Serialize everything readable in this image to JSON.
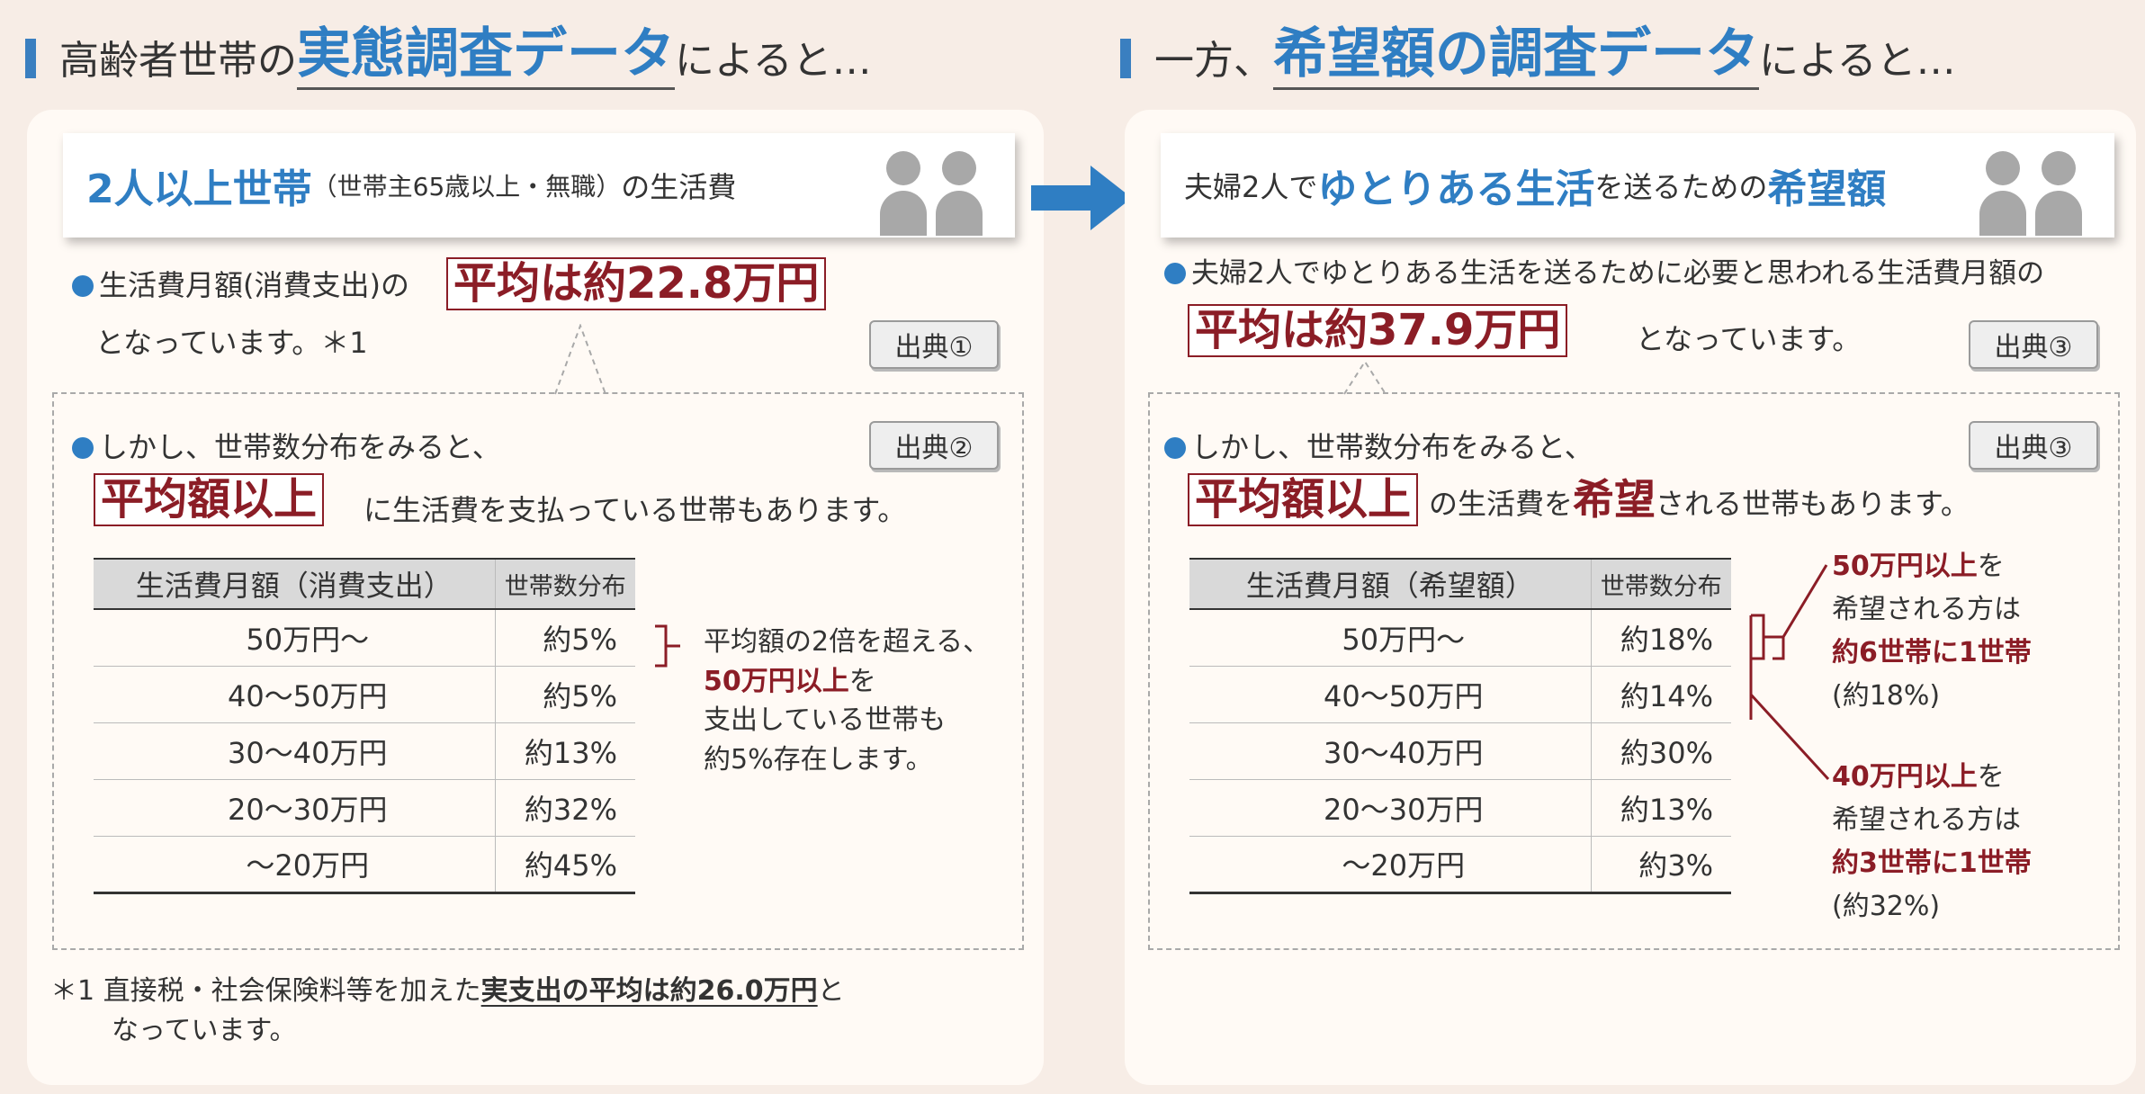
{
  "left": {
    "header": {
      "prefix": "高齢者世帯の",
      "highlight": "実態調査データ",
      "suffix": "によると…"
    },
    "title_box": {
      "main": "2人以上世帯",
      "paren": "（世帯主65歳以上・無職）",
      "tail": "の生活費"
    },
    "point1": {
      "line1_pre": "生活費月額(消費支出)の",
      "avg": "平均は約22.8万円",
      "line2": "となっています。＊1",
      "source": "出典①"
    },
    "point2": {
      "line1": "しかし、世帯数分布をみると、",
      "emph": "平均額以上",
      "line2_tail": "に生活費を支払っている世帯もあります。",
      "source": "出典②"
    },
    "table": {
      "headers": [
        "生活費月額（消費支出）",
        "世帯数分布"
      ],
      "rows": [
        {
          "range": "50万円～",
          "share": "約5%"
        },
        {
          "range": "40～50万円",
          "share": "約5%"
        },
        {
          "range": "30～40万円",
          "share": "約13%"
        },
        {
          "range": "20～30万円",
          "share": "約32%"
        },
        {
          "range": "～20万円",
          "share": "約45%"
        }
      ]
    },
    "callout": {
      "l1": "平均額の2倍を超える、",
      "l2": "50万円以上",
      "l2b": "を",
      "l3": "支出している世帯も",
      "l4": "約5%存在します。"
    },
    "footnote": {
      "mark": "＊1",
      "pre": "直接税・社会保険料等を加えた",
      "bold": "実支出の平均は約26.0万円",
      "post": "と",
      "line2": "なっています。"
    }
  },
  "right": {
    "header": {
      "prefix": "一方、",
      "highlight": "希望額の調査データ",
      "suffix": "によると…"
    },
    "title_box": {
      "pre": "夫婦2人で",
      "emph": "ゆとりある生活",
      "mid": "を送るための",
      "emph2": "希望額"
    },
    "point1": {
      "line1": "夫婦2人でゆとりある生活を送るために必要と思われる生活費月額の",
      "avg": "平均は約37.9万円",
      "line2_tail": "となっています。",
      "source": "出典③"
    },
    "point2": {
      "line1": "しかし、世帯数分布をみると、",
      "emph": "平均額以上",
      "mid": "の生活費を",
      "emph2": "希望",
      "tail": "される世帯もあります。",
      "source": "出典③"
    },
    "table": {
      "headers": [
        "生活費月額（希望額）",
        "世帯数分布"
      ],
      "rows": [
        {
          "range": "50万円～",
          "share": "約18%"
        },
        {
          "range": "40～50万円",
          "share": "約14%"
        },
        {
          "range": "30～40万円",
          "share": "約30%"
        },
        {
          "range": "20～30万円",
          "share": "約13%"
        },
        {
          "range": "～20万円",
          "share": "約3%"
        }
      ]
    },
    "callout1": {
      "l1": "50万円以上",
      "l1b": "を",
      "l2": "希望される方は",
      "l3": "約6世帯に1世帯",
      "l4": "(約18%)"
    },
    "callout2": {
      "l1": "40万円以上",
      "l1b": "を",
      "l2": "希望される方は",
      "l3": "約3世帯に1世帯",
      "l4": "(約32%)"
    }
  },
  "colors": {
    "accent_blue": "#2f7ec3",
    "accent_red": "#8b1d26",
    "background": "#f7ede6"
  },
  "icons": [
    "people-icon",
    "arrow-right-icon"
  ]
}
